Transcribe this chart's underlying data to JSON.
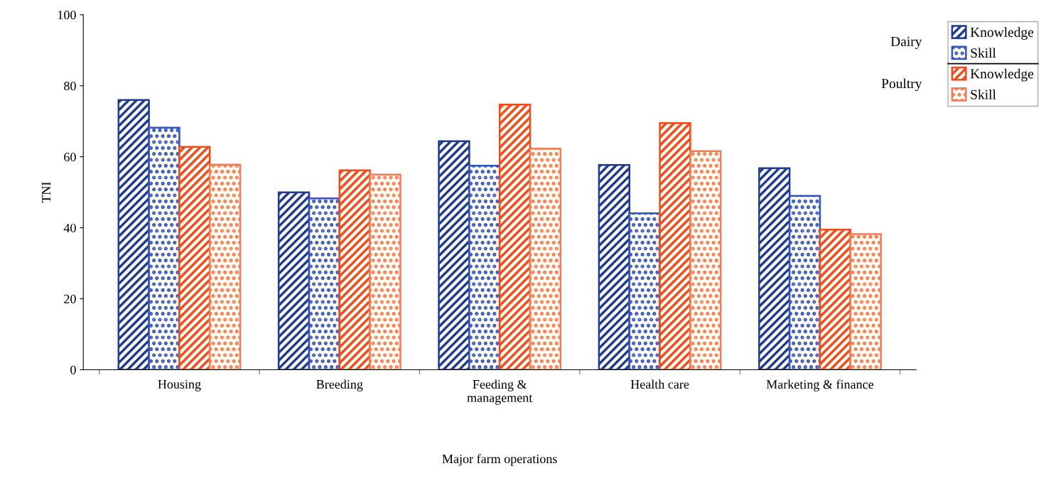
{
  "chart_data": {
    "type": "bar",
    "xlabel": "Major farm operations",
    "ylabel": "TNI",
    "categories": [
      "Housing",
      "Breeding",
      "Feeding &\nmanagement",
      "Health care",
      "Marketing & finance"
    ],
    "series": [
      {
        "name": "Knowledge",
        "color": "#1f3a93",
        "values": [
          76,
          50,
          64.4,
          57.7,
          56.8
        ]
      },
      {
        "name": "Skill",
        "color": "#3355bb",
        "values": [
          68.2,
          48.3,
          57.5,
          44.1,
          49.0
        ]
      },
      {
        "name": "Knowledge",
        "color": "#f04a1e",
        "values": [
          62.8,
          56.2,
          74.7,
          69.5,
          39.5
        ]
      },
      {
        "name": "Skill",
        "color": "#f47a55",
        "values": [
          57.8,
          55,
          62.3,
          61.6,
          38.2
        ]
      }
    ],
    "annotations": [
      "Dairy",
      "Poultry"
    ],
    "ylim": [
      0,
      100
    ],
    "yticks": [
      0,
      20,
      40,
      60,
      80,
      100
    ],
    "grid": false,
    "legend": "top right"
  }
}
